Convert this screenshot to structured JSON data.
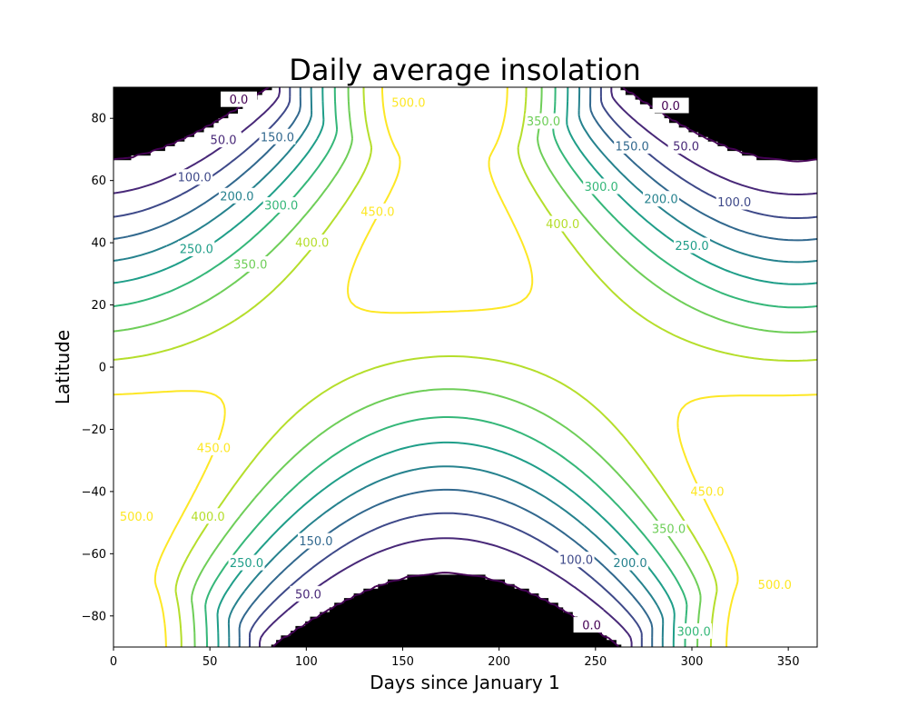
{
  "chart_data": {
    "type": "contour",
    "title": "Daily average insolation",
    "xlabel": "Days since January 1",
    "ylabel": "Latitude",
    "xlim": [
      0,
      365
    ],
    "ylim": [
      -90,
      90
    ],
    "xticks": [
      0,
      50,
      100,
      150,
      200,
      250,
      300,
      350
    ],
    "yticks": [
      -80,
      -60,
      -40,
      -20,
      0,
      20,
      40,
      60,
      80
    ],
    "polar_night_color": "#000000",
    "levels": [
      0,
      50,
      100,
      150,
      200,
      250,
      300,
      350,
      400,
      450,
      500
    ],
    "level_colors": [
      "#440154",
      "#482878",
      "#3e4989",
      "#31688e",
      "#26828e",
      "#1f9e89",
      "#35b779",
      "#6ece58",
      "#b5de2b",
      "#fde725"
    ],
    "contour_labels": [
      {
        "text": "0.0",
        "x": 65,
        "y": 86
      },
      {
        "text": "50.0",
        "x": 57,
        "y": 73
      },
      {
        "text": "100.0",
        "x": 42,
        "y": 61
      },
      {
        "text": "150.0",
        "x": 85,
        "y": 74
      },
      {
        "text": "200.0",
        "x": 64,
        "y": 55
      },
      {
        "text": "250.0",
        "x": 43,
        "y": 38
      },
      {
        "text": "300.0",
        "x": 87,
        "y": 52
      },
      {
        "text": "350.0",
        "x": 71,
        "y": 33
      },
      {
        "text": "400.0",
        "x": 103,
        "y": 40
      },
      {
        "text": "450.0",
        "x": 137,
        "y": 50
      },
      {
        "text": "500.0",
        "x": 153,
        "y": 85
      },
      {
        "text": "350.0",
        "x": 223,
        "y": 79
      },
      {
        "text": "400.0",
        "x": 233,
        "y": 46
      },
      {
        "text": "150.0",
        "x": 269,
        "y": 71
      },
      {
        "text": "50.0",
        "x": 297,
        "y": 71
      },
      {
        "text": "0.0",
        "x": 289,
        "y": 84
      },
      {
        "text": "300.0",
        "x": 253,
        "y": 58
      },
      {
        "text": "200.0",
        "x": 284,
        "y": 54
      },
      {
        "text": "100.0",
        "x": 322,
        "y": 53
      },
      {
        "text": "250.0",
        "x": 300,
        "y": 39
      },
      {
        "text": "450.0",
        "x": 52,
        "y": -26
      },
      {
        "text": "500.0",
        "x": 12,
        "y": -48
      },
      {
        "text": "400.0",
        "x": 49,
        "y": -48
      },
      {
        "text": "250.0",
        "x": 69,
        "y": -63
      },
      {
        "text": "150.0",
        "x": 105,
        "y": -56
      },
      {
        "text": "50.0",
        "x": 101,
        "y": -73
      },
      {
        "text": "100.0",
        "x": 240,
        "y": -62
      },
      {
        "text": "200.0",
        "x": 268,
        "y": -63
      },
      {
        "text": "0.0",
        "x": 248,
        "y": -83
      },
      {
        "text": "350.0",
        "x": 288,
        "y": -52
      },
      {
        "text": "450.0",
        "x": 308,
        "y": -40
      },
      {
        "text": "300.0",
        "x": 301,
        "y": -85
      },
      {
        "text": "500.0",
        "x": 343,
        "y": -70
      }
    ]
  }
}
